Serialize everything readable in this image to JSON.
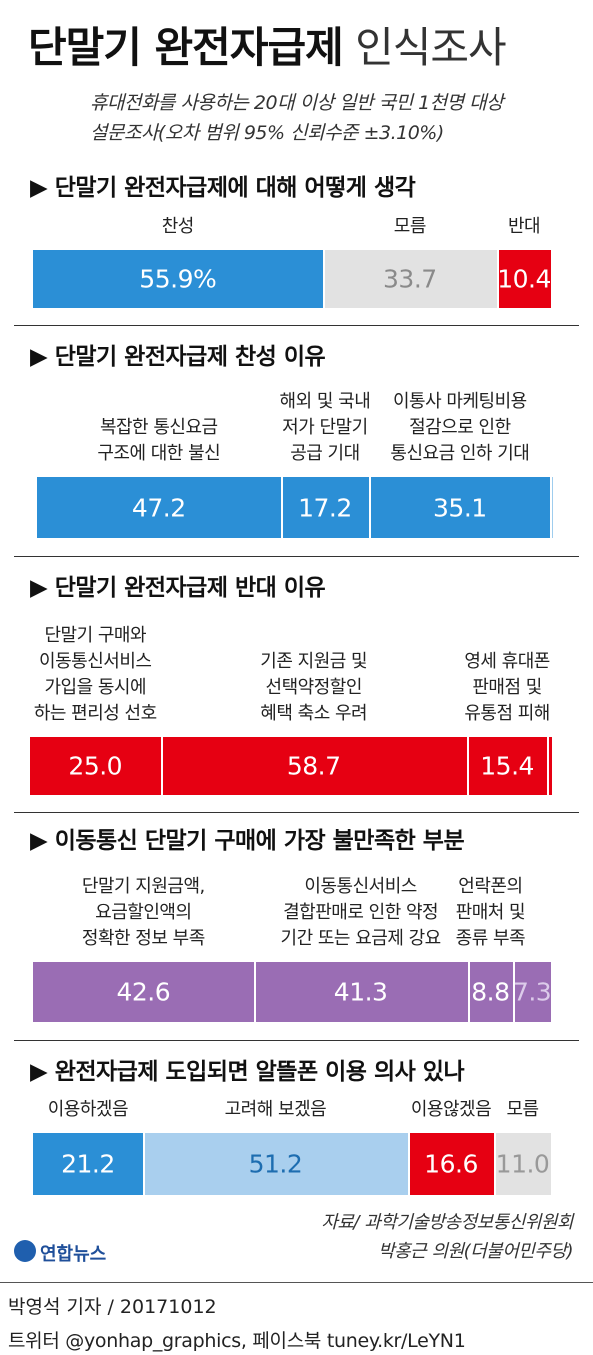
{
  "header": {
    "title": [
      "단말기 완전자급제",
      "인식조사"
    ],
    "subtitle": "휴대전화를 사용하는 20대 이상 일반 국민 1천명 대상\n설문조사(오차 범위 95% 신뢰수준 ±3.10%)"
  },
  "chart_data": [
    {
      "type": "bar",
      "stacked": true,
      "orientation": "horizontal",
      "title": "▶ 단말기 완전자급제에 대해 어떻게 생각",
      "categories": [
        "찬성",
        "모름",
        "반대"
      ],
      "values": [
        55.9,
        33.7,
        10.4
      ],
      "value_labels": [
        "55.9%",
        "33.7",
        "10.4"
      ],
      "colors": [
        "#2b8fd6",
        "#e2e2e2",
        "#e60012"
      ],
      "label_colors": [
        "#ffffff",
        "#8a8a8a",
        "#ffffff"
      ]
    },
    {
      "type": "bar",
      "stacked": true,
      "orientation": "horizontal",
      "title": "▶ 단말기 완전자급제 찬성 이유",
      "categories": [
        "복잡한 통신요금\n구조에 대한 불신",
        "해외 및 국내\n저가 단말기\n공급 기대",
        "이통사 마케팅비용\n절감으로 인한\n통신요금 인하 기대",
        null
      ],
      "values": [
        47.2,
        17.2,
        35.1,
        0.5
      ],
      "value_labels": [
        "47.2",
        "17.2",
        "35.1",
        null
      ],
      "colors": [
        "#2b8fd6",
        "#2b8fd6",
        "#2b8fd6",
        "#9fcdee"
      ],
      "label_colors": [
        "#ffffff",
        "#ffffff",
        "#ffffff",
        "#ffffff"
      ]
    },
    {
      "type": "bar",
      "stacked": true,
      "orientation": "horizontal",
      "title": "▶ 단말기 완전자급제 반대 이유",
      "categories": [
        "단말기 구매와\n이동통신서비스\n가입을 동시에\n하는 편리성 선호",
        "기존 지원금 및\n선택약정할인\n혜택 축소 우려",
        "영세 휴대폰\n판매점 및\n유통점 피해",
        null
      ],
      "values": [
        25.0,
        58.7,
        15.4,
        0.9
      ],
      "value_labels": [
        "25.0",
        "58.7",
        "15.4",
        null
      ],
      "colors": [
        "#e60012",
        "#e60012",
        "#e60012",
        "#e60012"
      ],
      "label_colors": [
        "#ffffff",
        "#ffffff",
        "#ffffff",
        "#ffffff"
      ]
    },
    {
      "type": "bar",
      "stacked": true,
      "orientation": "horizontal",
      "title": "▶ 이동통신 단말기 구매에 가장 불만족한 부분",
      "categories": [
        "단말기 지원금액,\n요금할인액의\n정확한 정보 부족",
        "이동통신서비스\n결합판매로 인한 약정\n기간 또는 요금제 강요",
        "언락폰의\n판매처 및\n종류 부족",
        null
      ],
      "values": [
        42.6,
        41.3,
        8.8,
        7.3
      ],
      "value_labels": [
        "42.6",
        "41.3",
        "8.8",
        "7.3"
      ],
      "colors": [
        "#9a6db4",
        "#9a6db4",
        "#9a6db4",
        "#9a6db4"
      ],
      "label_colors": [
        "#ffffff",
        "#ffffff",
        "#ffffff",
        "#dccbea"
      ]
    },
    {
      "type": "bar",
      "stacked": true,
      "orientation": "horizontal",
      "title": "▶ 완전자급제 도입되면 알뜰폰 이용 의사 있나",
      "categories": [
        "이용하겠음",
        "고려해 보겠음",
        "이용않겠음",
        "모름"
      ],
      "values": [
        21.2,
        51.2,
        16.6,
        11.0
      ],
      "value_labels": [
        "21.2",
        "51.2",
        "16.6",
        "11.0"
      ],
      "colors": [
        "#2b8fd6",
        "#a9cfee",
        "#e60012",
        "#e2e2e2"
      ],
      "label_colors": [
        "#ffffff",
        "#1d6db0",
        "#ffffff",
        "#999999"
      ]
    }
  ],
  "source": "자료/ 과학기술방송정보통신위원회\n박홍근 의원(더불어민주당)",
  "logo": "연합뉴스",
  "footer": [
    "박영석 기자 / 20171012",
    "트위터 @yonhap_graphics, 페이스북 tuney.kr/LeYN1"
  ]
}
